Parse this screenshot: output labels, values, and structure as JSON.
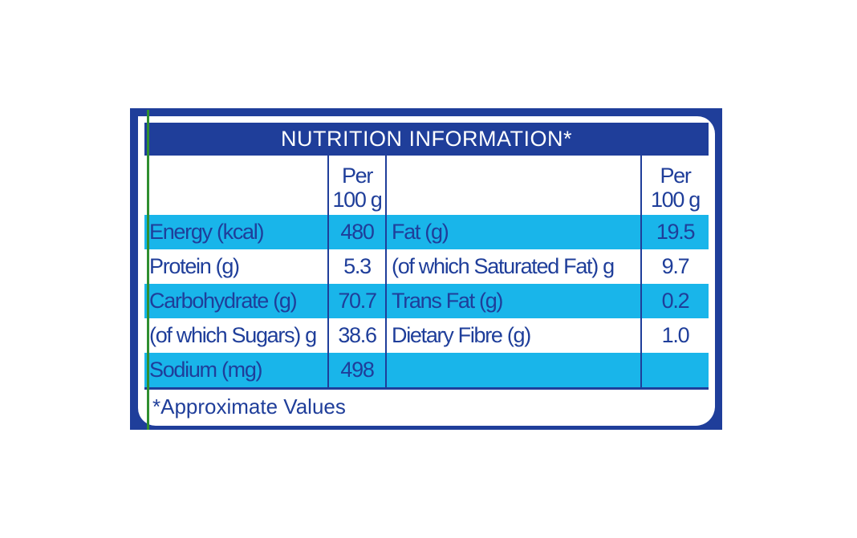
{
  "title": "NUTRITION INFORMATION*",
  "header": {
    "per_left": "Per",
    "unit_left": "100 g",
    "per_right": "Per",
    "unit_right": "100 g"
  },
  "rows": [
    {
      "left_label": "Energy (kcal)",
      "left_value": "480",
      "right_label": "Fat (g)",
      "right_value": "19.5"
    },
    {
      "left_label": "Protein (g)",
      "left_value": "5.3",
      "right_label": "(of which Saturated Fat) g",
      "right_value": "9.7"
    },
    {
      "left_label": "Carbohydrate (g)",
      "left_value": "70.7",
      "right_label": "Trans Fat (g)",
      "right_value": "0.2"
    },
    {
      "left_label": "(of which Sugars) g",
      "left_value": "38.6",
      "right_label": "Dietary Fibre (g)",
      "right_value": "1.0"
    },
    {
      "left_label": "Sodium (mg)",
      "left_value": "498",
      "right_label": "",
      "right_value": ""
    }
  ],
  "footnote": "*Approximate Values",
  "colors": {
    "brand_blue": "#1f3e9a",
    "row_highlight": "#19b5ea",
    "background": "#ffffff"
  }
}
